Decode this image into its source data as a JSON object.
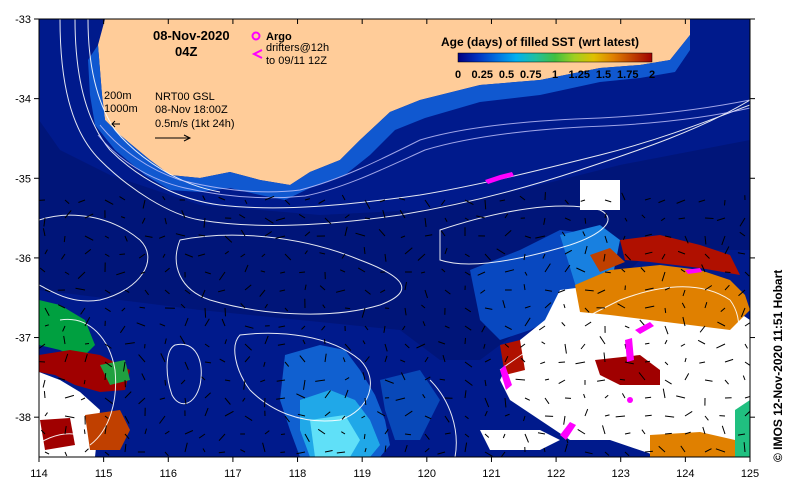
{
  "title": {
    "date": "08-Nov-2020",
    "time": "04Z"
  },
  "legend": {
    "argo_label": "Argo",
    "drifters_label": "drifters@12h",
    "drifters_sub": "to 09/11 12Z",
    "colorbar_title": "Age (days) of filled SST (wrt latest)",
    "colorbar_ticks": [
      "0",
      "0.25",
      "0.5",
      "0.75",
      "1",
      "1.25",
      "1.5",
      "1.75",
      "2"
    ],
    "colorbar_colors": [
      "#000080",
      "#0030c0",
      "#0070e0",
      "#00b0f0",
      "#20c0a0",
      "#40c040",
      "#a0d020",
      "#e0c000",
      "#e08000",
      "#c04000",
      "#a00000"
    ]
  },
  "contours": {
    "label_200m": "200m",
    "label_1000m": "1000m"
  },
  "info": {
    "line1": "NRT00 GSL",
    "line2": "08-Nov 18:00Z",
    "line3": "0.5m/s (1kt 24h)"
  },
  "credit": "© IMOS 12-Nov-2020 11:51 Hobart",
  "axes": {
    "x_ticks": [
      "114",
      "115",
      "116",
      "117",
      "118",
      "119",
      "120",
      "121",
      "122",
      "123",
      "124",
      "125"
    ],
    "y_ticks": [
      "-33",
      "-34",
      "-35",
      "-36",
      "-37",
      "-38"
    ],
    "x_range": [
      114,
      125
    ],
    "y_range": [
      -38.5,
      -33
    ]
  },
  "colors": {
    "ocean": "#001a8c",
    "land": "#ffcc99",
    "no_data": "#ffffff",
    "argo": "#ff00ff"
  }
}
